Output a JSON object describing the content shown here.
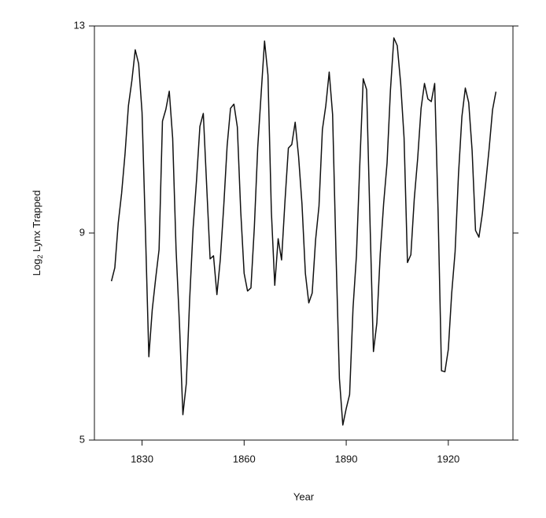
{
  "chart_data": {
    "type": "line",
    "xlabel": "Year",
    "ylabel": [
      "Log",
      "2",
      " Lynx Trapped"
    ],
    "x": [
      1821,
      1822,
      1823,
      1824,
      1825,
      1826,
      1827,
      1828,
      1829,
      1830,
      1831,
      1832,
      1833,
      1834,
      1835,
      1836,
      1837,
      1838,
      1839,
      1840,
      1841,
      1842,
      1843,
      1844,
      1845,
      1846,
      1847,
      1848,
      1849,
      1850,
      1851,
      1852,
      1853,
      1854,
      1855,
      1856,
      1857,
      1858,
      1859,
      1860,
      1861,
      1862,
      1863,
      1864,
      1865,
      1866,
      1867,
      1868,
      1869,
      1870,
      1871,
      1872,
      1873,
      1874,
      1875,
      1876,
      1877,
      1878,
      1879,
      1880,
      1881,
      1882,
      1883,
      1884,
      1885,
      1886,
      1887,
      1888,
      1889,
      1890,
      1891,
      1892,
      1893,
      1894,
      1895,
      1896,
      1897,
      1898,
      1899,
      1900,
      1901,
      1902,
      1903,
      1904,
      1905,
      1906,
      1907,
      1908,
      1909,
      1910,
      1911,
      1912,
      1913,
      1914,
      1915,
      1916,
      1917,
      1918,
      1919,
      1920,
      1921,
      1922,
      1923,
      1924,
      1925,
      1926,
      1927,
      1928,
      1929,
      1930,
      1931,
      1932,
      1933,
      1934
    ],
    "values": [
      8.07,
      8.33,
      9.19,
      9.77,
      10.53,
      11.46,
      11.94,
      12.54,
      12.27,
      11.33,
      9.03,
      6.61,
      7.52,
      8.12,
      8.68,
      11.16,
      11.39,
      11.74,
      10.83,
      8.68,
      7.24,
      5.49,
      6.09,
      7.73,
      9.09,
      10.01,
      11.06,
      11.31,
      9.9,
      8.5,
      8.56,
      7.81,
      8.49,
      9.51,
      10.68,
      11.41,
      11.49,
      11.05,
      9.42,
      8.22,
      7.88,
      7.94,
      9.11,
      10.66,
      11.69,
      12.71,
      12.05,
      9.42,
      7.99,
      8.89,
      8.48,
      9.61,
      10.64,
      10.71,
      11.14,
      10.48,
      9.56,
      8.22,
      7.65,
      7.84,
      8.87,
      9.52,
      11.0,
      11.46,
      12.11,
      11.29,
      8.6,
      6.19,
      5.29,
      5.61,
      5.88,
      7.55,
      8.56,
      10.34,
      11.98,
      11.77,
      9.2,
      6.71,
      7.26,
      8.6,
      9.57,
      10.35,
      11.76,
      12.77,
      12.62,
      11.89,
      10.84,
      8.43,
      8.58,
      9.66,
      10.44,
      11.41,
      11.89,
      11.59,
      11.54,
      11.89,
      9.4,
      6.34,
      6.32,
      6.75,
      7.84,
      8.64,
      10.14,
      11.25,
      11.8,
      11.52,
      10.59,
      9.05,
      8.92,
      9.37,
      9.97,
      10.63,
      11.38,
      11.73
    ],
    "color": "#111111",
    "xlim": [
      1816,
      1939
    ],
    "xticks": [
      1830,
      1860,
      1890,
      1920
    ],
    "ylim": [
      5,
      13
    ],
    "yticks": [
      5,
      9,
      13
    ]
  }
}
